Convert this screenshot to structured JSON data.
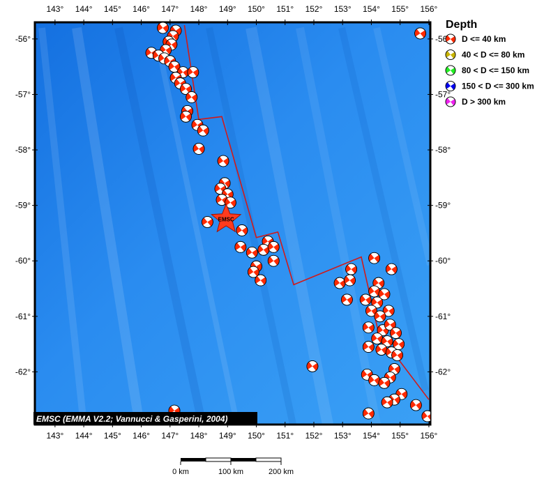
{
  "map": {
    "lon_range": [
      142.3,
      156.05
    ],
    "lat_range": [
      -62.95,
      -55.7
    ],
    "lon_ticks": [
      "143°",
      "144°",
      "145°",
      "146°",
      "147°",
      "148°",
      "149°",
      "150°",
      "151°",
      "152°",
      "153°",
      "154°",
      "155°",
      "156°"
    ],
    "lat_ticks": [
      "-56°",
      "-57°",
      "-58°",
      "-59°",
      "-60°",
      "-61°",
      "-62°"
    ],
    "ocean_color": "#1e7fe6",
    "plate_boundary_color": "#d01a1a",
    "plate_boundary": [
      [
        147.5,
        -55.75
      ],
      [
        148.0,
        -57.45
      ],
      [
        148.8,
        -57.4
      ],
      [
        150.0,
        -59.58
      ],
      [
        150.75,
        -59.48
      ],
      [
        151.3,
        -60.43
      ],
      [
        153.65,
        -59.93
      ],
      [
        154.25,
        -61.3
      ],
      [
        156.0,
        -62.5
      ]
    ],
    "epicenter": {
      "label": "EMSC",
      "lon": 148.95,
      "lat": -59.25,
      "color": "#ff3b1e"
    },
    "events": [
      {
        "lon": 146.75,
        "lat": -55.8
      },
      {
        "lon": 147.2,
        "lat": -55.85
      },
      {
        "lon": 147.1,
        "lat": -55.95
      },
      {
        "lon": 146.95,
        "lat": -56.05
      },
      {
        "lon": 147.05,
        "lat": -56.1
      },
      {
        "lon": 146.85,
        "lat": -56.2
      },
      {
        "lon": 146.35,
        "lat": -56.25
      },
      {
        "lon": 146.6,
        "lat": -56.3
      },
      {
        "lon": 146.8,
        "lat": -56.35
      },
      {
        "lon": 147.0,
        "lat": -56.4
      },
      {
        "lon": 147.15,
        "lat": -56.5
      },
      {
        "lon": 147.45,
        "lat": -56.6
      },
      {
        "lon": 147.8,
        "lat": -56.6
      },
      {
        "lon": 147.2,
        "lat": -56.7
      },
      {
        "lon": 147.35,
        "lat": -56.8
      },
      {
        "lon": 147.55,
        "lat": -56.9
      },
      {
        "lon": 147.75,
        "lat": -57.05
      },
      {
        "lon": 147.6,
        "lat": -57.3
      },
      {
        "lon": 147.55,
        "lat": -57.4
      },
      {
        "lon": 147.95,
        "lat": -57.55
      },
      {
        "lon": 148.15,
        "lat": -57.65
      },
      {
        "lon": 148.0,
        "lat": -57.98
      },
      {
        "lon": 148.85,
        "lat": -58.2
      },
      {
        "lon": 148.9,
        "lat": -58.6
      },
      {
        "lon": 148.75,
        "lat": -58.7
      },
      {
        "lon": 149.0,
        "lat": -58.8
      },
      {
        "lon": 148.8,
        "lat": -58.9
      },
      {
        "lon": 149.1,
        "lat": -58.95
      },
      {
        "lon": 148.3,
        "lat": -59.3
      },
      {
        "lon": 149.5,
        "lat": -59.45
      },
      {
        "lon": 149.45,
        "lat": -59.75
      },
      {
        "lon": 150.4,
        "lat": -59.65
      },
      {
        "lon": 150.25,
        "lat": -59.8
      },
      {
        "lon": 149.85,
        "lat": -59.85
      },
      {
        "lon": 150.6,
        "lat": -59.75
      },
      {
        "lon": 150.0,
        "lat": -60.1
      },
      {
        "lon": 150.6,
        "lat": -60.0
      },
      {
        "lon": 149.9,
        "lat": -60.2
      },
      {
        "lon": 150.15,
        "lat": -60.35
      },
      {
        "lon": 152.9,
        "lat": -60.4
      },
      {
        "lon": 153.3,
        "lat": -60.15
      },
      {
        "lon": 153.25,
        "lat": -60.35
      },
      {
        "lon": 154.1,
        "lat": -59.95
      },
      {
        "lon": 154.7,
        "lat": -60.15
      },
      {
        "lon": 153.15,
        "lat": -60.7
      },
      {
        "lon": 153.8,
        "lat": -60.7
      },
      {
        "lon": 154.25,
        "lat": -60.4
      },
      {
        "lon": 154.1,
        "lat": -60.55
      },
      {
        "lon": 154.45,
        "lat": -60.6
      },
      {
        "lon": 154.2,
        "lat": -60.75
      },
      {
        "lon": 154.0,
        "lat": -60.9
      },
      {
        "lon": 154.6,
        "lat": -60.9
      },
      {
        "lon": 154.3,
        "lat": -61.0
      },
      {
        "lon": 153.9,
        "lat": -61.2
      },
      {
        "lon": 154.4,
        "lat": -61.25
      },
      {
        "lon": 154.65,
        "lat": -61.15
      },
      {
        "lon": 154.85,
        "lat": -61.3
      },
      {
        "lon": 154.2,
        "lat": -61.4
      },
      {
        "lon": 154.55,
        "lat": -61.45
      },
      {
        "lon": 154.95,
        "lat": -61.5
      },
      {
        "lon": 153.9,
        "lat": -61.55
      },
      {
        "lon": 154.35,
        "lat": -61.6
      },
      {
        "lon": 154.7,
        "lat": -61.65
      },
      {
        "lon": 154.9,
        "lat": -61.7
      },
      {
        "lon": 151.95,
        "lat": -61.9
      },
      {
        "lon": 154.8,
        "lat": -61.95
      },
      {
        "lon": 153.85,
        "lat": -62.05
      },
      {
        "lon": 154.1,
        "lat": -62.15
      },
      {
        "lon": 154.65,
        "lat": -62.1
      },
      {
        "lon": 154.45,
        "lat": -62.2
      },
      {
        "lon": 155.05,
        "lat": -62.4
      },
      {
        "lon": 154.8,
        "lat": -62.5
      },
      {
        "lon": 154.55,
        "lat": -62.55
      },
      {
        "lon": 155.55,
        "lat": -62.6
      },
      {
        "lon": 147.15,
        "lat": -62.7
      },
      {
        "lon": 153.9,
        "lat": -62.75
      },
      {
        "lon": 155.95,
        "lat": -62.8
      },
      {
        "lon": 155.7,
        "lat": -55.9
      }
    ]
  },
  "legend": {
    "title": "Depth",
    "items": [
      {
        "label": "D <= 40 km",
        "color": "#ff2a00"
      },
      {
        "label": "40 < D <= 80 km",
        "color": "#c8b400"
      },
      {
        "label": "80 < D <= 150 km",
        "color": "#22ee22"
      },
      {
        "label": "150 < D <= 300 km",
        "color": "#0000ee"
      },
      {
        "label": "D > 300 km",
        "color": "#ee22ee"
      }
    ]
  },
  "credit": "EMSC (EMMA V2.2; Vannucci & Gasperini, 2004)",
  "scale_bar": {
    "labels": [
      "0 km",
      "100 km",
      "200 km"
    ]
  }
}
